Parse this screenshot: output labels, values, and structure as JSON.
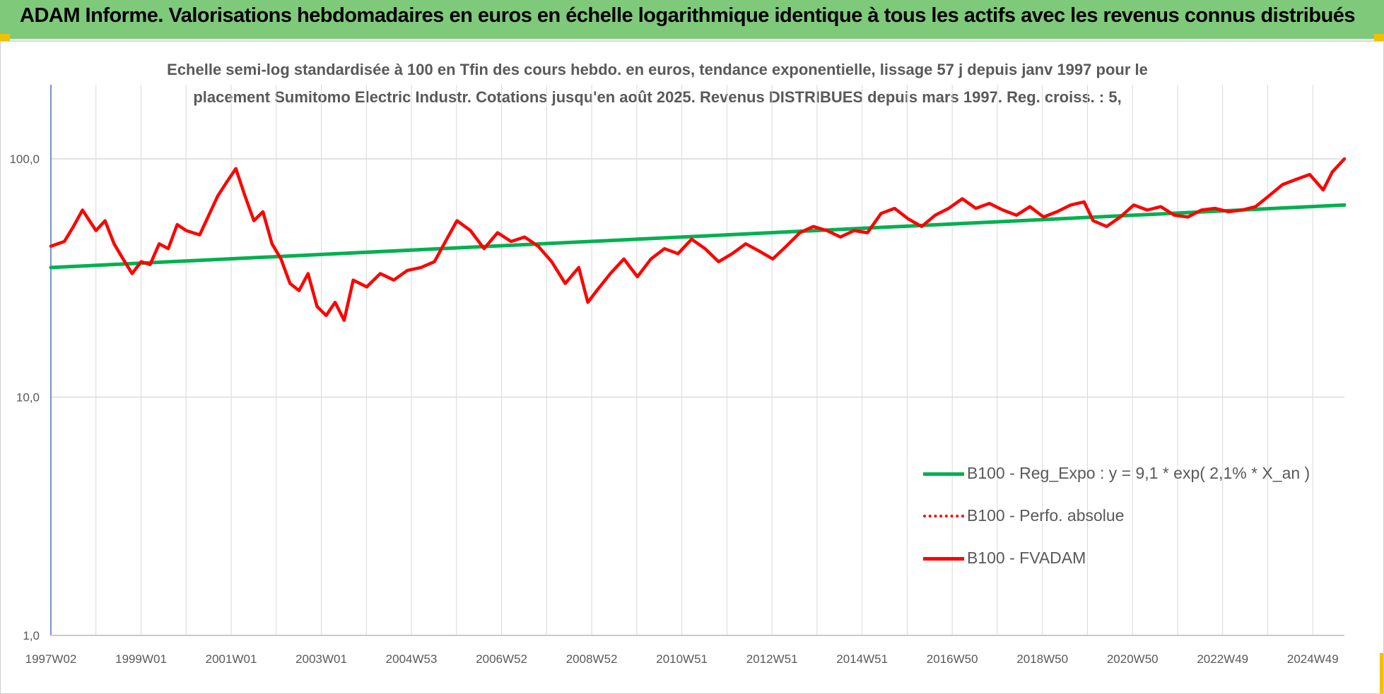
{
  "header": {
    "title": "ADAM Informe. Valorisations hebdomadaires en euros en échelle logarithmique identique à tous les actifs avec les revenus connus distribués"
  },
  "subtitle": {
    "line1": "Echelle semi-log standardisée à 100 en Tfin des cours hebdo. en euros, tendance exponentielle, lissage 57 j depuis janv 1997 pour le",
    "line2": "placement Sumitomo  Electric Industr. Cotations jusqu'en août 2025. Revenus DISTRIBUES depuis mars 1997. Reg. croiss. : 5,"
  },
  "colors": {
    "header_bg": "#7fc97a",
    "corner_accent": "#f2c000",
    "reg_line": "#00b050",
    "perf_line": "#ff0000",
    "fvadam_line": "#ff0000",
    "gridline": "#d9d9d9",
    "axis": "#4472c4",
    "text": "#595959"
  },
  "chart_data": {
    "type": "line",
    "y_scale": "log",
    "ylim": [
      1,
      200
    ],
    "y_ticks": [
      "1,0",
      "10,0",
      "100,0"
    ],
    "x_tick_labels": [
      "1997W02",
      "1999W01",
      "2001W01",
      "2003W01",
      "2004W53",
      "2006W52",
      "2008W52",
      "2010W51",
      "2012W51",
      "2014W51",
      "2016W50",
      "2018W50",
      "2020W50",
      "2022W49",
      "2024W49"
    ],
    "xlim": [
      1997.0,
      2025.67
    ],
    "grid": true,
    "legend_position": "bottom-right",
    "series": [
      {
        "name": "B100 - Reg_Expo : y = 9,1 * exp( 2,1% *  X_an )",
        "style": "solid",
        "color": "#00b050",
        "x": [
          1997.0,
          2025.67
        ],
        "y": [
          35.0,
          64.0
        ]
      },
      {
        "name": "B100 - Perfo. absolue",
        "style": "dotted",
        "color": "#ff0000",
        "x": [],
        "y": []
      },
      {
        "name": "B100 - FVADAM",
        "style": "solid",
        "color": "#ff0000",
        "x": [
          1997.0,
          1997.3,
          1997.5,
          1997.7,
          1998.0,
          1998.2,
          1998.4,
          1998.6,
          1998.8,
          1999.0,
          1999.2,
          1999.4,
          1999.6,
          1999.8,
          2000.0,
          2000.3,
          2000.5,
          2000.7,
          2000.9,
          2001.1,
          2001.3,
          2001.5,
          2001.7,
          2001.9,
          2002.1,
          2002.3,
          2002.5,
          2002.7,
          2002.9,
          2003.1,
          2003.3,
          2003.5,
          2003.7,
          2004.0,
          2004.3,
          2004.6,
          2004.9,
          2005.2,
          2005.5,
          2005.8,
          2006.0,
          2006.3,
          2006.6,
          2006.9,
          2007.2,
          2007.5,
          2007.8,
          2008.1,
          2008.4,
          2008.7,
          2008.9,
          2009.1,
          2009.4,
          2009.7,
          2010.0,
          2010.3,
          2010.6,
          2010.9,
          2011.2,
          2011.5,
          2011.8,
          2012.1,
          2012.4,
          2012.7,
          2013.0,
          2013.3,
          2013.6,
          2013.9,
          2014.2,
          2014.5,
          2014.8,
          2015.1,
          2015.4,
          2015.7,
          2016.0,
          2016.3,
          2016.6,
          2016.9,
          2017.2,
          2017.5,
          2017.8,
          2018.1,
          2018.4,
          2018.7,
          2019.0,
          2019.3,
          2019.6,
          2019.9,
          2020.1,
          2020.4,
          2020.7,
          2021.0,
          2021.3,
          2021.6,
          2021.9,
          2022.2,
          2022.5,
          2022.8,
          2023.1,
          2023.4,
          2023.7,
          2024.0,
          2024.3,
          2024.6,
          2024.9,
          2025.2,
          2025.4,
          2025.67
        ],
        "y": [
          43,
          45,
          52,
          61,
          50,
          55,
          44,
          38,
          33,
          37,
          36,
          44,
          42,
          53,
          50,
          48,
          58,
          70,
          80,
          91,
          70,
          55,
          60,
          44,
          38,
          30,
          28,
          33,
          24,
          22,
          25,
          21,
          31,
          29,
          33,
          31,
          34,
          35,
          37,
          47,
          55,
          50,
          42,
          49,
          45,
          47,
          43,
          37,
          30,
          35,
          25,
          28,
          33,
          38,
          32,
          38,
          42,
          40,
          46,
          42,
          37,
          40,
          44,
          41,
          38,
          43,
          49,
          52,
          50,
          47,
          50,
          49,
          59,
          62,
          56,
          52,
          58,
          62,
          68,
          62,
          65,
          61,
          58,
          63,
          57,
          60,
          64,
          66,
          55,
          52,
          57,
          64,
          61,
          63,
          58,
          57,
          61,
          62,
          60,
          61,
          63,
          70,
          78,
          82,
          86,
          74,
          88,
          100
        ]
      }
    ]
  }
}
